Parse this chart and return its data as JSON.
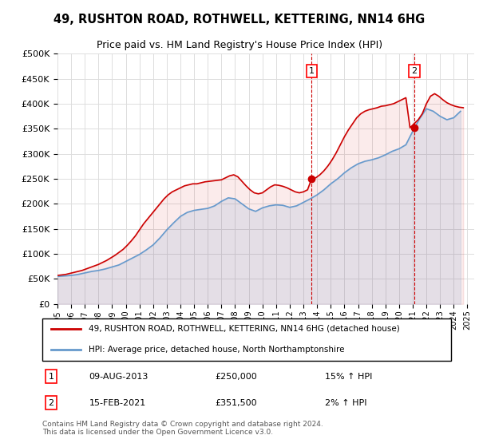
{
  "title": "49, RUSHTON ROAD, ROTHWELL, KETTERING, NN14 6HG",
  "subtitle": "Price paid vs. HM Land Registry's House Price Index (HPI)",
  "legend_line1": "49, RUSHTON ROAD, ROTHWELL, KETTERING, NN14 6HG (detached house)",
  "legend_line2": "HPI: Average price, detached house, North Northamptonshire",
  "footer": "Contains HM Land Registry data © Crown copyright and database right 2024.\nThis data is licensed under the Open Government Licence v3.0.",
  "annotation1_label": "1",
  "annotation1_date": "09-AUG-2013",
  "annotation1_price": "£250,000",
  "annotation1_hpi": "15% ↑ HPI",
  "annotation1_value": 250000,
  "annotation1_year": 2013.6,
  "annotation2_label": "2",
  "annotation2_date": "15-FEB-2021",
  "annotation2_price": "£351,500",
  "annotation2_hpi": "2% ↑ HPI",
  "annotation2_value": 351500,
  "annotation2_year": 2021.12,
  "hpi_color": "#6699cc",
  "sale_color": "#cc0000",
  "vline_color": "#cc0000",
  "background_color": "#ffffff",
  "grid_color": "#dddddd",
  "ylim": [
    0,
    500000
  ],
  "xlim_start": 1995,
  "xlim_end": 2025.5,
  "hpi_data_years": [
    1995,
    1995.5,
    1996,
    1996.5,
    1997,
    1997.5,
    1998,
    1998.5,
    1999,
    1999.5,
    2000,
    2000.5,
    2001,
    2001.5,
    2002,
    2002.5,
    2003,
    2003.5,
    2004,
    2004.5,
    2005,
    2005.5,
    2006,
    2006.5,
    2007,
    2007.5,
    2008,
    2008.5,
    2009,
    2009.5,
    2010,
    2010.5,
    2011,
    2011.5,
    2012,
    2012.5,
    2013,
    2013.5,
    2014,
    2014.5,
    2015,
    2015.5,
    2016,
    2016.5,
    2017,
    2017.5,
    2018,
    2018.5,
    2019,
    2019.5,
    2020,
    2020.5,
    2021,
    2021.5,
    2022,
    2022.5,
    2023,
    2023.5,
    2024,
    2024.5
  ],
  "hpi_values": [
    55000,
    56000,
    57000,
    59000,
    62000,
    65000,
    67000,
    70000,
    74000,
    78000,
    85000,
    92000,
    99000,
    108000,
    118000,
    132000,
    148000,
    162000,
    175000,
    183000,
    187000,
    189000,
    191000,
    196000,
    205000,
    212000,
    210000,
    200000,
    190000,
    185000,
    192000,
    196000,
    198000,
    197000,
    193000,
    196000,
    203000,
    210000,
    218000,
    228000,
    240000,
    250000,
    262000,
    272000,
    280000,
    285000,
    288000,
    292000,
    298000,
    305000,
    310000,
    318000,
    345000,
    370000,
    390000,
    385000,
    375000,
    368000,
    372000,
    385000
  ],
  "sale_data_years": [
    1995,
    1995.3,
    1995.6,
    1995.9,
    1996.2,
    1996.5,
    1996.8,
    1997.1,
    1997.4,
    1997.7,
    1998,
    1998.3,
    1998.6,
    1998.9,
    1999.2,
    1999.5,
    1999.8,
    2000.1,
    2000.4,
    2000.7,
    2001,
    2001.3,
    2001.6,
    2001.9,
    2002.2,
    2002.5,
    2002.8,
    2003.1,
    2003.4,
    2003.7,
    2004,
    2004.3,
    2004.6,
    2004.9,
    2005.2,
    2005.5,
    2005.8,
    2006.1,
    2006.4,
    2006.7,
    2007,
    2007.3,
    2007.6,
    2007.9,
    2008.2,
    2008.5,
    2008.8,
    2009.1,
    2009.4,
    2009.7,
    2010,
    2010.3,
    2010.6,
    2010.9,
    2011.2,
    2011.5,
    2011.8,
    2012.1,
    2012.4,
    2012.7,
    2013,
    2013.3,
    2013.6,
    2013.9,
    2014.2,
    2014.5,
    2014.8,
    2015.1,
    2015.4,
    2015.7,
    2016,
    2016.3,
    2016.6,
    2016.9,
    2017.2,
    2017.5,
    2017.8,
    2018.1,
    2018.4,
    2018.7,
    2019,
    2019.3,
    2019.6,
    2019.9,
    2020.2,
    2020.5,
    2020.8,
    2021.1,
    2021.4,
    2021.7,
    2022,
    2022.3,
    2022.6,
    2022.9,
    2023.2,
    2023.5,
    2023.8,
    2024.1,
    2024.4,
    2024.7
  ],
  "sale_values": [
    57000,
    58000,
    59000,
    61000,
    63000,
    65000,
    67000,
    70000,
    73000,
    76000,
    79000,
    83000,
    87000,
    92000,
    97000,
    103000,
    109000,
    117000,
    126000,
    136000,
    148000,
    160000,
    170000,
    180000,
    190000,
    200000,
    210000,
    218000,
    224000,
    228000,
    232000,
    236000,
    238000,
    240000,
    240000,
    242000,
    244000,
    245000,
    246000,
    247000,
    248000,
    252000,
    256000,
    258000,
    254000,
    245000,
    236000,
    228000,
    222000,
    220000,
    222000,
    228000,
    234000,
    238000,
    237000,
    235000,
    232000,
    228000,
    224000,
    222000,
    224000,
    228000,
    250000,
    252000,
    258000,
    266000,
    276000,
    288000,
    302000,
    318000,
    334000,
    348000,
    360000,
    372000,
    380000,
    385000,
    388000,
    390000,
    392000,
    395000,
    396000,
    398000,
    400000,
    404000,
    408000,
    412000,
    352000,
    360000,
    368000,
    380000,
    400000,
    415000,
    420000,
    415000,
    408000,
    402000,
    398000,
    395000,
    393000,
    392000
  ]
}
